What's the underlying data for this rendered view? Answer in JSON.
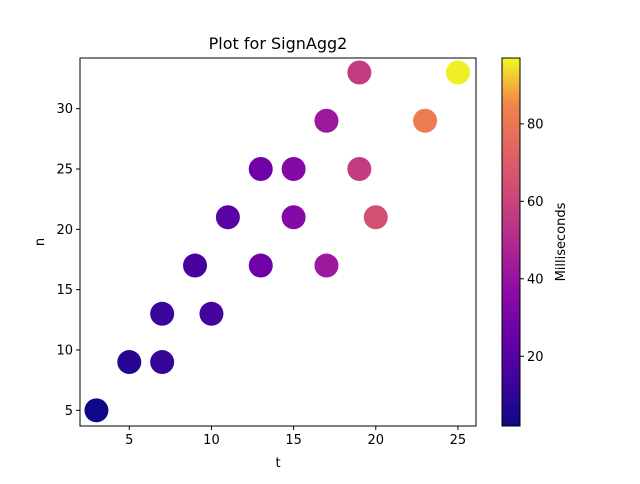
{
  "chart_data": {
    "type": "scatter",
    "title": "Plot for SignAgg2",
    "xlabel": "t",
    "ylabel": "n",
    "xlim": [
      2.0,
      26.1
    ],
    "ylim": [
      3.7,
      34.2
    ],
    "xticks": [
      5,
      10,
      15,
      20,
      25
    ],
    "yticks": [
      5,
      10,
      15,
      20,
      25,
      30
    ],
    "grid": false,
    "colormap": "plasma",
    "colorbar": {
      "label": "Milliseconds",
      "range": [
        2,
        97
      ],
      "ticks": [
        20,
        40,
        60,
        80
      ]
    },
    "points": [
      {
        "t": 3,
        "n": 5,
        "ms": 2
      },
      {
        "t": 5,
        "n": 9,
        "ms": 8
      },
      {
        "t": 7,
        "n": 9,
        "ms": 11
      },
      {
        "t": 7,
        "n": 13,
        "ms": 12
      },
      {
        "t": 10,
        "n": 13,
        "ms": 15
      },
      {
        "t": 9,
        "n": 17,
        "ms": 16
      },
      {
        "t": 11,
        "n": 21,
        "ms": 21
      },
      {
        "t": 13,
        "n": 17,
        "ms": 27
      },
      {
        "t": 13,
        "n": 25,
        "ms": 27
      },
      {
        "t": 15,
        "n": 21,
        "ms": 34
      },
      {
        "t": 15,
        "n": 25,
        "ms": 34
      },
      {
        "t": 17,
        "n": 17,
        "ms": 42
      },
      {
        "t": 17,
        "n": 29,
        "ms": 42
      },
      {
        "t": 19,
        "n": 25,
        "ms": 57
      },
      {
        "t": 19,
        "n": 33,
        "ms": 57
      },
      {
        "t": 20,
        "n": 21,
        "ms": 65
      },
      {
        "t": 23,
        "n": 29,
        "ms": 82
      },
      {
        "t": 25,
        "n": 33,
        "ms": 96
      }
    ]
  }
}
